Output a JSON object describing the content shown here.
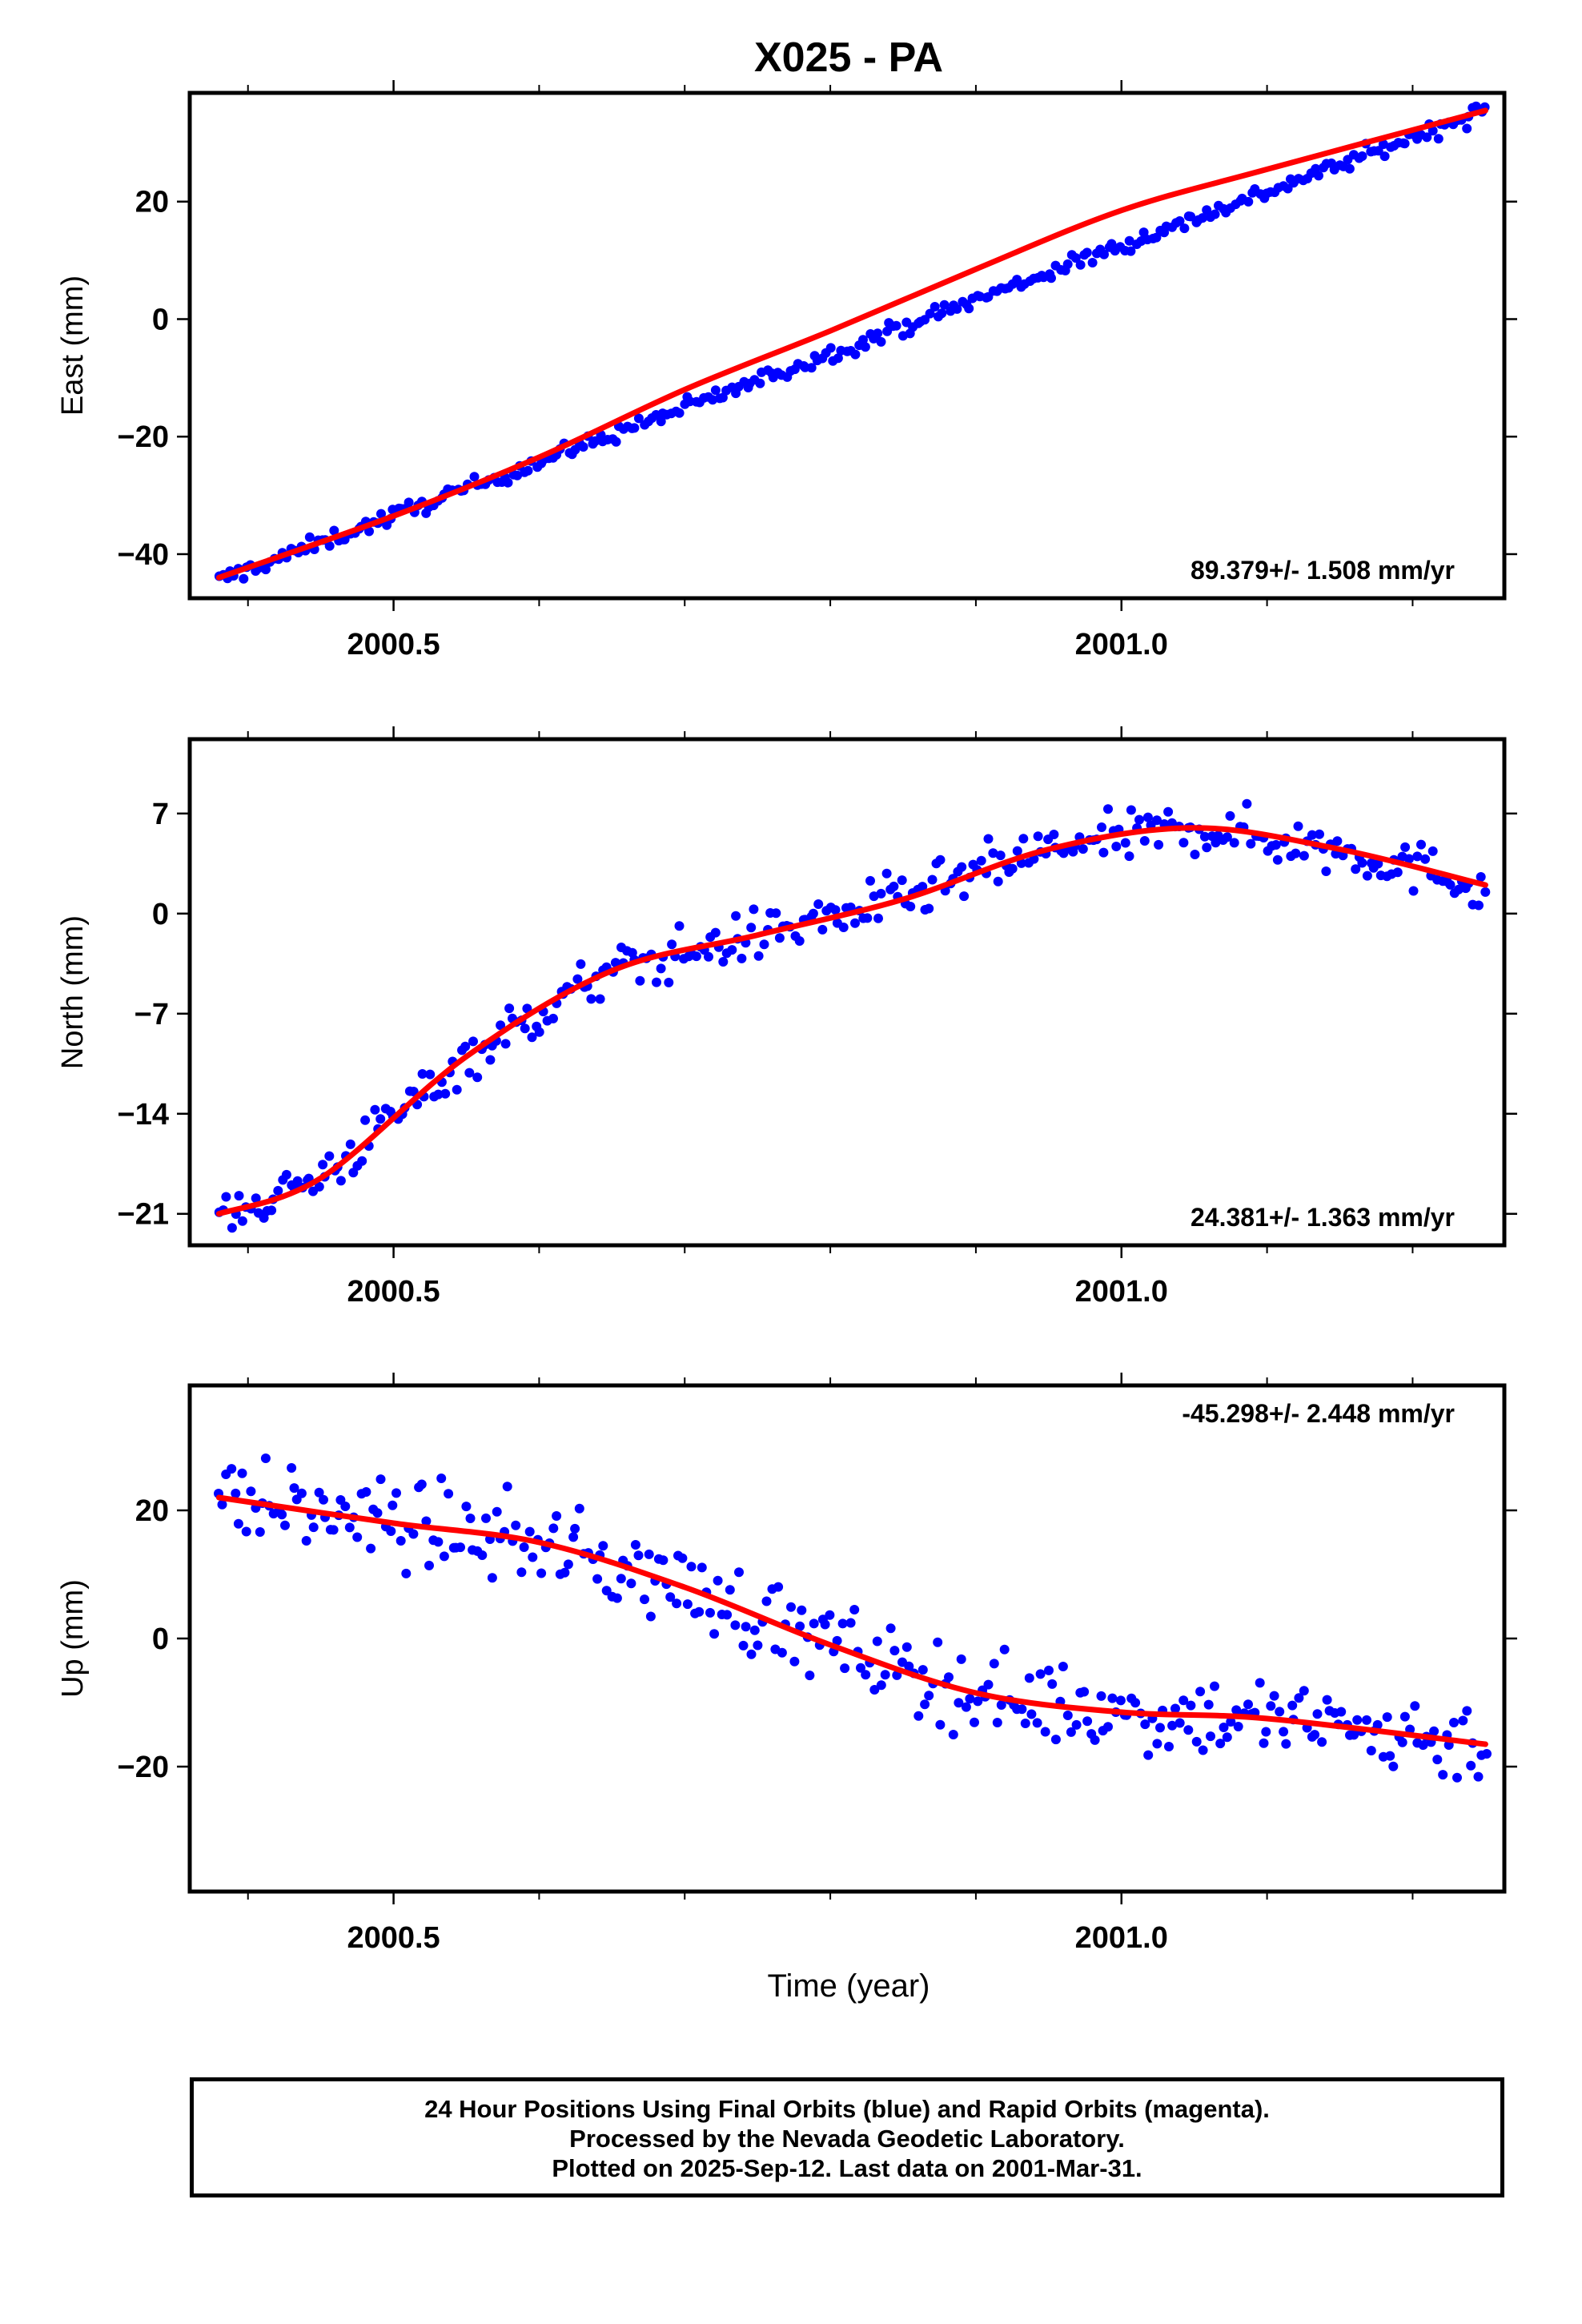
{
  "title": "X025 - PA",
  "x_axis_label": "Time (year)",
  "footer": {
    "line1": "24 Hour Positions Using Final Orbits (blue) and Rapid Orbits (magenta).",
    "line2": "Processed by the Nevada Geodetic Laboratory.",
    "line3": "Plotted on 2025-Sep-12. Last data on 2001-Mar-31."
  },
  "colors": {
    "data_points": "#0000ff",
    "fit_line": "#ff0000",
    "frame": "#000000"
  },
  "chart_data": [
    {
      "type": "scatter",
      "ylabel": "East (mm)",
      "rate_label": "89.379+/- 1.508 mm/yr",
      "rate_position": "bottom-right",
      "xlim": [
        2000.36,
        2001.263
      ],
      "ylim": [
        -47.5,
        38.5
      ],
      "xticks": [
        2000.5,
        2001.0
      ],
      "xtick_labels": [
        "2000.5",
        "2001.0"
      ],
      "yticks": [
        -40,
        -20,
        0,
        20
      ],
      "ytick_labels": [
        "−40",
        "−20",
        "0",
        "20"
      ],
      "grid": false,
      "points": {
        "x_start": 2000.38,
        "x_end": 2001.25,
        "count": 320,
        "y_start": -44.5,
        "y_end": 35.5,
        "shape": "linear",
        "scatter_mm": 1.2
      },
      "fit_line": {
        "x": [
          2000.38,
          2000.5,
          2000.6,
          2000.7,
          2000.8,
          2000.9,
          2001.0,
          2001.1,
          2001.25
        ],
        "y": [
          -44.0,
          -33.5,
          -23.5,
          -12.0,
          -2.0,
          8.5,
          18.5,
          25.5,
          35.5
        ]
      }
    },
    {
      "type": "scatter",
      "ylabel": "North (mm)",
      "rate_label": "24.381+/- 1.363 mm/yr",
      "rate_position": "bottom-right",
      "xlim": [
        2000.36,
        2001.263
      ],
      "ylim": [
        -23.2,
        12.2
      ],
      "xticks": [
        2000.5,
        2001.0
      ],
      "xtick_labels": [
        "2000.5",
        "2001.0"
      ],
      "yticks": [
        -21,
        -14,
        -7,
        0,
        7
      ],
      "ytick_labels": [
        "−21",
        "−14",
        "−7",
        "0",
        "7"
      ],
      "grid": false,
      "points": {
        "x_start": 2000.38,
        "x_end": 2001.25,
        "count": 320,
        "shape": "follows fit line",
        "scatter_mm": 1.5
      },
      "fit_line": {
        "x": [
          2000.38,
          2000.45,
          2000.55,
          2000.65,
          2000.75,
          2000.85,
          2000.95,
          2001.05,
          2001.15,
          2001.25
        ],
        "y": [
          -21.0,
          -18.5,
          -10.0,
          -4.0,
          -1.5,
          1.0,
          4.5,
          6.0,
          4.5,
          2.0
        ]
      }
    },
    {
      "type": "scatter",
      "ylabel": "Up (mm)",
      "rate_label": "-45.298+/- 2.448 mm/yr",
      "rate_position": "top-right",
      "xlim": [
        2000.36,
        2001.263
      ],
      "ylim": [
        -39.5,
        39.5
      ],
      "xticks": [
        2000.5,
        2001.0
      ],
      "xtick_labels": [
        "2000.5",
        "2001.0"
      ],
      "yticks": [
        -20,
        0,
        20
      ],
      "ytick_labels": [
        "−20",
        "0",
        "20"
      ],
      "grid": false,
      "points": {
        "x_start": 2000.38,
        "x_end": 2001.25,
        "count": 320,
        "shape": "follows fit line",
        "scatter_mm": 5.5
      },
      "fit_line": {
        "x": [
          2000.38,
          2000.5,
          2000.6,
          2000.7,
          2000.8,
          2000.9,
          2001.0,
          2001.1,
          2001.25
        ],
        "y": [
          22.0,
          18.0,
          15.0,
          8.0,
          -1.0,
          -8.5,
          -11.5,
          -12.5,
          -16.5
        ]
      }
    }
  ]
}
